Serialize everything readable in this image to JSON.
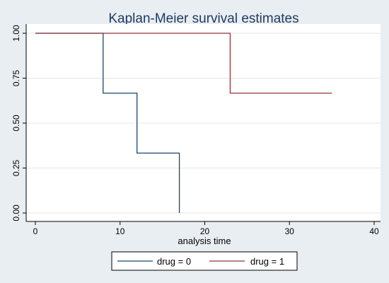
{
  "chart_data": {
    "type": "line",
    "step": "post",
    "title": "Kaplan-Meier survival estimates",
    "xlabel": "analysis time",
    "ylabel": "",
    "xlim": [
      0,
      40
    ],
    "ylim": [
      0,
      1
    ],
    "x_ticks": [
      "0",
      "10",
      "20",
      "30",
      "40"
    ],
    "y_ticks": [
      "0.00",
      "0.25",
      "0.50",
      "0.75",
      "1.00"
    ],
    "grid": true,
    "legend_position": "bottom",
    "series": [
      {
        "name": "drug = 0",
        "color": "#1a476f",
        "x": [
          0,
          8,
          12,
          17
        ],
        "y": [
          1.0,
          0.6667,
          0.3333,
          0.0
        ]
      },
      {
        "name": "drug = 1",
        "color": "#90353b",
        "x": [
          0,
          23,
          35
        ],
        "y": [
          1.0,
          0.6667,
          0.6667
        ]
      }
    ]
  }
}
